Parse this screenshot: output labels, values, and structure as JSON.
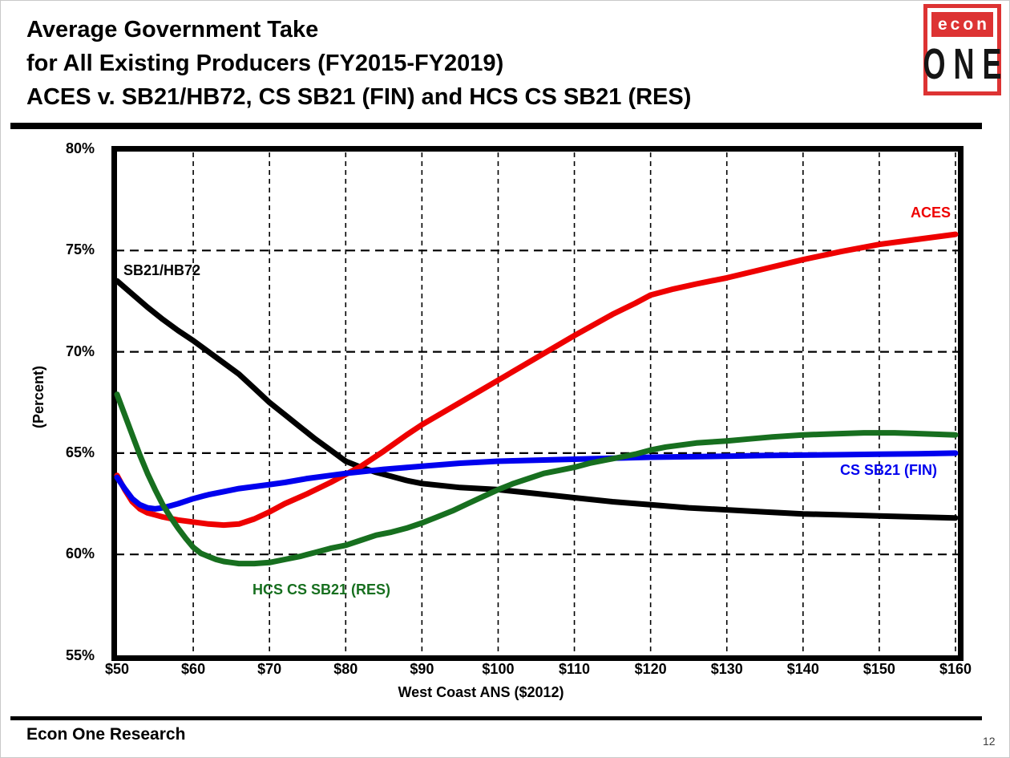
{
  "header": {
    "title_line1": "Average Government Take",
    "title_line2": "for All Existing Producers (FY2015-FY2019)",
    "title_line3": "ACES v. SB21/HB72, CS SB21 (FIN) and HCS CS SB21 (RES)"
  },
  "logo": {
    "top": "econ",
    "bottom": "ONE",
    "accent_color": "#dd3333"
  },
  "footer": {
    "company": "Econ One Research",
    "page_number": "12"
  },
  "chart_data": {
    "type": "line",
    "title": "Average Government Take for All Existing Producers (FY2015-FY2019)",
    "xlabel": "West Coast ANS ($2012)",
    "ylabel": "(Percent)",
    "xlim": [
      50,
      160
    ],
    "ylim": [
      55,
      80
    ],
    "grid": {
      "horizontal_at": [
        75,
        70,
        65,
        60
      ],
      "vertical_at": [
        60,
        70,
        80,
        90,
        100,
        110,
        120,
        130,
        140,
        150,
        160
      ]
    },
    "x_ticks": [
      {
        "value": 50,
        "label": "$50"
      },
      {
        "value": 60,
        "label": "$60"
      },
      {
        "value": 70,
        "label": "$70"
      },
      {
        "value": 80,
        "label": "$80"
      },
      {
        "value": 90,
        "label": "$90"
      },
      {
        "value": 100,
        "label": "$100"
      },
      {
        "value": 110,
        "label": "$110"
      },
      {
        "value": 120,
        "label": "$120"
      },
      {
        "value": 130,
        "label": "$130"
      },
      {
        "value": 140,
        "label": "$140"
      },
      {
        "value": 150,
        "label": "$150"
      },
      {
        "value": 160,
        "label": "$160"
      }
    ],
    "y_ticks": [
      {
        "value": 80,
        "label": "80%"
      },
      {
        "value": 75,
        "label": "75%"
      },
      {
        "value": 70,
        "label": "70%"
      },
      {
        "value": 65,
        "label": "65%"
      },
      {
        "value": 60,
        "label": "60%"
      },
      {
        "value": 55,
        "label": "55%"
      }
    ],
    "series": [
      {
        "name": "SB21/HB72",
        "color": "#000000",
        "points": [
          [
            50,
            73.5
          ],
          [
            52,
            72.85
          ],
          [
            54,
            72.2
          ],
          [
            56,
            71.6
          ],
          [
            58,
            71.05
          ],
          [
            60,
            70.55
          ],
          [
            62,
            70.0
          ],
          [
            64,
            69.45
          ],
          [
            66,
            68.9
          ],
          [
            68,
            68.2
          ],
          [
            70,
            67.5
          ],
          [
            72,
            66.9
          ],
          [
            74,
            66.3
          ],
          [
            76,
            65.7
          ],
          [
            78,
            65.15
          ],
          [
            80,
            64.6
          ],
          [
            82,
            64.3
          ],
          [
            84,
            64.05
          ],
          [
            86,
            63.85
          ],
          [
            88,
            63.65
          ],
          [
            90,
            63.5
          ],
          [
            95,
            63.3
          ],
          [
            100,
            63.2
          ],
          [
            105,
            63.0
          ],
          [
            110,
            62.8
          ],
          [
            115,
            62.6
          ],
          [
            120,
            62.45
          ],
          [
            125,
            62.3
          ],
          [
            130,
            62.2
          ],
          [
            135,
            62.1
          ],
          [
            140,
            62.0
          ],
          [
            145,
            61.95
          ],
          [
            150,
            61.9
          ],
          [
            155,
            61.85
          ],
          [
            160,
            61.8
          ]
        ]
      },
      {
        "name": "ACES",
        "color": "#ee0000",
        "points": [
          [
            50,
            63.9
          ],
          [
            51,
            63.2
          ],
          [
            52,
            62.6
          ],
          [
            53,
            62.25
          ],
          [
            54,
            62.05
          ],
          [
            55,
            61.95
          ],
          [
            56,
            61.85
          ],
          [
            58,
            61.7
          ],
          [
            60,
            61.6
          ],
          [
            62,
            61.5
          ],
          [
            64,
            61.45
          ],
          [
            66,
            61.5
          ],
          [
            68,
            61.75
          ],
          [
            70,
            62.1
          ],
          [
            72,
            62.5
          ],
          [
            75,
            63.0
          ],
          [
            78,
            63.55
          ],
          [
            80,
            63.95
          ],
          [
            82,
            64.35
          ],
          [
            85,
            65.1
          ],
          [
            88,
            65.9
          ],
          [
            90,
            66.4
          ],
          [
            95,
            67.5
          ],
          [
            100,
            68.6
          ],
          [
            105,
            69.7
          ],
          [
            110,
            70.8
          ],
          [
            115,
            71.85
          ],
          [
            118,
            72.4
          ],
          [
            120,
            72.8
          ],
          [
            123,
            73.1
          ],
          [
            126,
            73.35
          ],
          [
            130,
            73.65
          ],
          [
            135,
            74.1
          ],
          [
            140,
            74.55
          ],
          [
            145,
            74.95
          ],
          [
            150,
            75.3
          ],
          [
            155,
            75.55
          ],
          [
            160,
            75.8
          ]
        ]
      },
      {
        "name": "CS SB21 (FIN)",
        "color": "#0000ee",
        "points": [
          [
            50,
            63.8
          ],
          [
            51,
            63.25
          ],
          [
            52,
            62.75
          ],
          [
            53,
            62.45
          ],
          [
            54,
            62.3
          ],
          [
            55,
            62.25
          ],
          [
            56,
            62.3
          ],
          [
            57,
            62.4
          ],
          [
            58,
            62.5
          ],
          [
            60,
            62.75
          ],
          [
            62,
            62.95
          ],
          [
            64,
            63.1
          ],
          [
            66,
            63.25
          ],
          [
            68,
            63.35
          ],
          [
            70,
            63.45
          ],
          [
            72,
            63.55
          ],
          [
            75,
            63.75
          ],
          [
            78,
            63.9
          ],
          [
            80,
            64.0
          ],
          [
            85,
            64.2
          ],
          [
            90,
            64.35
          ],
          [
            95,
            64.5
          ],
          [
            100,
            64.6
          ],
          [
            105,
            64.65
          ],
          [
            110,
            64.7
          ],
          [
            115,
            64.75
          ],
          [
            120,
            64.8
          ],
          [
            125,
            64.82
          ],
          [
            130,
            64.85
          ],
          [
            135,
            64.88
          ],
          [
            140,
            64.9
          ],
          [
            145,
            64.92
          ],
          [
            150,
            64.95
          ],
          [
            155,
            64.97
          ],
          [
            160,
            65.0
          ]
        ]
      },
      {
        "name": "HCS CS SB21 (RES)",
        "color": "#176f1f",
        "points": [
          [
            50,
            67.9
          ],
          [
            51,
            66.9
          ],
          [
            52,
            65.9
          ],
          [
            53,
            64.9
          ],
          [
            54,
            64.0
          ],
          [
            55,
            63.2
          ],
          [
            56,
            62.45
          ],
          [
            57,
            61.85
          ],
          [
            58,
            61.3
          ],
          [
            59,
            60.8
          ],
          [
            60,
            60.35
          ],
          [
            61,
            60.05
          ],
          [
            62,
            59.9
          ],
          [
            63,
            59.75
          ],
          [
            64,
            59.65
          ],
          [
            65,
            59.6
          ],
          [
            66,
            59.55
          ],
          [
            68,
            59.55
          ],
          [
            70,
            59.6
          ],
          [
            72,
            59.75
          ],
          [
            74,
            59.9
          ],
          [
            76,
            60.1
          ],
          [
            78,
            60.3
          ],
          [
            80,
            60.45
          ],
          [
            82,
            60.7
          ],
          [
            84,
            60.95
          ],
          [
            86,
            61.1
          ],
          [
            88,
            61.3
          ],
          [
            90,
            61.55
          ],
          [
            92,
            61.85
          ],
          [
            94,
            62.15
          ],
          [
            96,
            62.5
          ],
          [
            98,
            62.85
          ],
          [
            100,
            63.2
          ],
          [
            102,
            63.5
          ],
          [
            104,
            63.75
          ],
          [
            106,
            64.0
          ],
          [
            108,
            64.15
          ],
          [
            110,
            64.3
          ],
          [
            112,
            64.5
          ],
          [
            114,
            64.65
          ],
          [
            116,
            64.8
          ],
          [
            118,
            64.95
          ],
          [
            120,
            65.15
          ],
          [
            122,
            65.3
          ],
          [
            124,
            65.4
          ],
          [
            126,
            65.5
          ],
          [
            128,
            65.55
          ],
          [
            130,
            65.6
          ],
          [
            133,
            65.7
          ],
          [
            136,
            65.8
          ],
          [
            140,
            65.9
          ],
          [
            144,
            65.95
          ],
          [
            148,
            66.0
          ],
          [
            152,
            66.0
          ],
          [
            156,
            65.95
          ],
          [
            160,
            65.9
          ]
        ]
      }
    ]
  }
}
